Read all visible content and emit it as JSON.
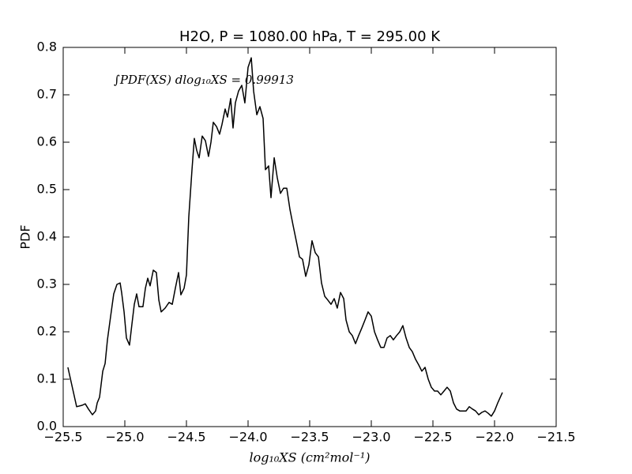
{
  "chart_data": {
    "type": "line",
    "title": "H2O, P = 1080.00 hPa, T = 295.00 K",
    "xlabel": "log₁₀XS (cm²mol⁻¹)",
    "ylabel": "PDF",
    "annotation": "∫PDF(XS) dlog₁₀XS = 0.99913",
    "color": "#000000",
    "xlim": [
      -25.5,
      -21.5
    ],
    "ylim": [
      0,
      0.8
    ],
    "xticks": [
      {
        "value": -25.5,
        "label": "−25.5"
      },
      {
        "value": -25.0,
        "label": "−25.0"
      },
      {
        "value": -24.5,
        "label": "−24.5"
      },
      {
        "value": -24.0,
        "label": "−24.0"
      },
      {
        "value": -23.5,
        "label": "−23.5"
      },
      {
        "value": -23.0,
        "label": "−23.0"
      },
      {
        "value": -22.5,
        "label": "−22.5"
      },
      {
        "value": -22.0,
        "label": "−22.0"
      },
      {
        "value": -21.5,
        "label": "−21.5"
      }
    ],
    "yticks": [
      {
        "value": 0,
        "label": "0.0"
      },
      0.1,
      0.2,
      0.3,
      0.4,
      0.5,
      0.6,
      0.7,
      0.8
    ],
    "x": [
      -25.462,
      -25.391,
      -25.346,
      -25.321,
      -25.295,
      -25.263,
      -25.237,
      -25.224,
      -25.205,
      -25.179,
      -25.16,
      -25.141,
      -25.115,
      -25.09,
      -25.064,
      -25.038,
      -25.026,
      -25.006,
      -24.987,
      -24.962,
      -24.942,
      -24.923,
      -24.904,
      -24.885,
      -24.853,
      -24.833,
      -24.814,
      -24.795,
      -24.769,
      -24.744,
      -24.724,
      -24.705,
      -24.673,
      -24.641,
      -24.615,
      -24.59,
      -24.564,
      -24.545,
      -24.519,
      -24.5,
      -24.481,
      -24.455,
      -24.436,
      -24.417,
      -24.397,
      -24.372,
      -24.346,
      -24.321,
      -24.301,
      -24.282,
      -24.256,
      -24.231,
      -24.212,
      -24.186,
      -24.167,
      -24.141,
      -24.122,
      -24.103,
      -24.077,
      -24.051,
      -24.026,
      -24.0,
      -23.974,
      -23.955,
      -23.929,
      -23.904,
      -23.878,
      -23.859,
      -23.833,
      -23.814,
      -23.788,
      -23.763,
      -23.737,
      -23.712,
      -23.686,
      -23.66,
      -23.635,
      -23.609,
      -23.583,
      -23.558,
      -23.532,
      -23.506,
      -23.481,
      -23.455,
      -23.429,
      -23.404,
      -23.378,
      -23.353,
      -23.327,
      -23.301,
      -23.276,
      -23.25,
      -23.224,
      -23.205,
      -23.179,
      -23.154,
      -23.128,
      -23.103,
      -23.077,
      -23.051,
      -23.026,
      -23.0,
      -22.974,
      -22.949,
      -22.923,
      -22.897,
      -22.872,
      -22.846,
      -22.821,
      -22.795,
      -22.769,
      -22.744,
      -22.718,
      -22.692,
      -22.667,
      -22.641,
      -22.615,
      -22.59,
      -22.564,
      -22.538,
      -22.513,
      -22.487,
      -22.462,
      -22.436,
      -22.41,
      -22.385,
      -22.359,
      -22.333,
      -22.308,
      -22.282,
      -22.231,
      -22.205,
      -22.179,
      -22.154,
      -22.128,
      -22.103,
      -22.077,
      -22.051,
      -22.026,
      -22.0,
      -21.974,
      -21.936
    ],
    "values": [
      0.125,
      0.042,
      0.045,
      0.048,
      0.037,
      0.025,
      0.033,
      0.05,
      0.062,
      0.117,
      0.133,
      0.183,
      0.233,
      0.28,
      0.3,
      0.303,
      0.283,
      0.242,
      0.187,
      0.172,
      0.217,
      0.258,
      0.28,
      0.253,
      0.253,
      0.292,
      0.313,
      0.297,
      0.33,
      0.325,
      0.267,
      0.242,
      0.25,
      0.262,
      0.258,
      0.292,
      0.325,
      0.278,
      0.292,
      0.32,
      0.442,
      0.542,
      0.608,
      0.583,
      0.567,
      0.613,
      0.603,
      0.57,
      0.6,
      0.642,
      0.633,
      0.617,
      0.637,
      0.67,
      0.653,
      0.692,
      0.63,
      0.683,
      0.708,
      0.72,
      0.683,
      0.758,
      0.778,
      0.708,
      0.658,
      0.675,
      0.65,
      0.542,
      0.55,
      0.483,
      0.567,
      0.525,
      0.492,
      0.503,
      0.503,
      0.458,
      0.425,
      0.392,
      0.358,
      0.353,
      0.317,
      0.342,
      0.392,
      0.367,
      0.358,
      0.303,
      0.275,
      0.267,
      0.258,
      0.27,
      0.25,
      0.283,
      0.27,
      0.225,
      0.2,
      0.192,
      0.175,
      0.192,
      0.208,
      0.225,
      0.242,
      0.233,
      0.2,
      0.183,
      0.167,
      0.167,
      0.187,
      0.192,
      0.183,
      0.192,
      0.2,
      0.213,
      0.187,
      0.167,
      0.158,
      0.142,
      0.13,
      0.117,
      0.125,
      0.1,
      0.083,
      0.075,
      0.075,
      0.067,
      0.075,
      0.083,
      0.075,
      0.05,
      0.037,
      0.033,
      0.033,
      0.042,
      0.037,
      0.033,
      0.025,
      0.03,
      0.033,
      0.028,
      0.022,
      0.033,
      0.05,
      0.072
    ]
  }
}
